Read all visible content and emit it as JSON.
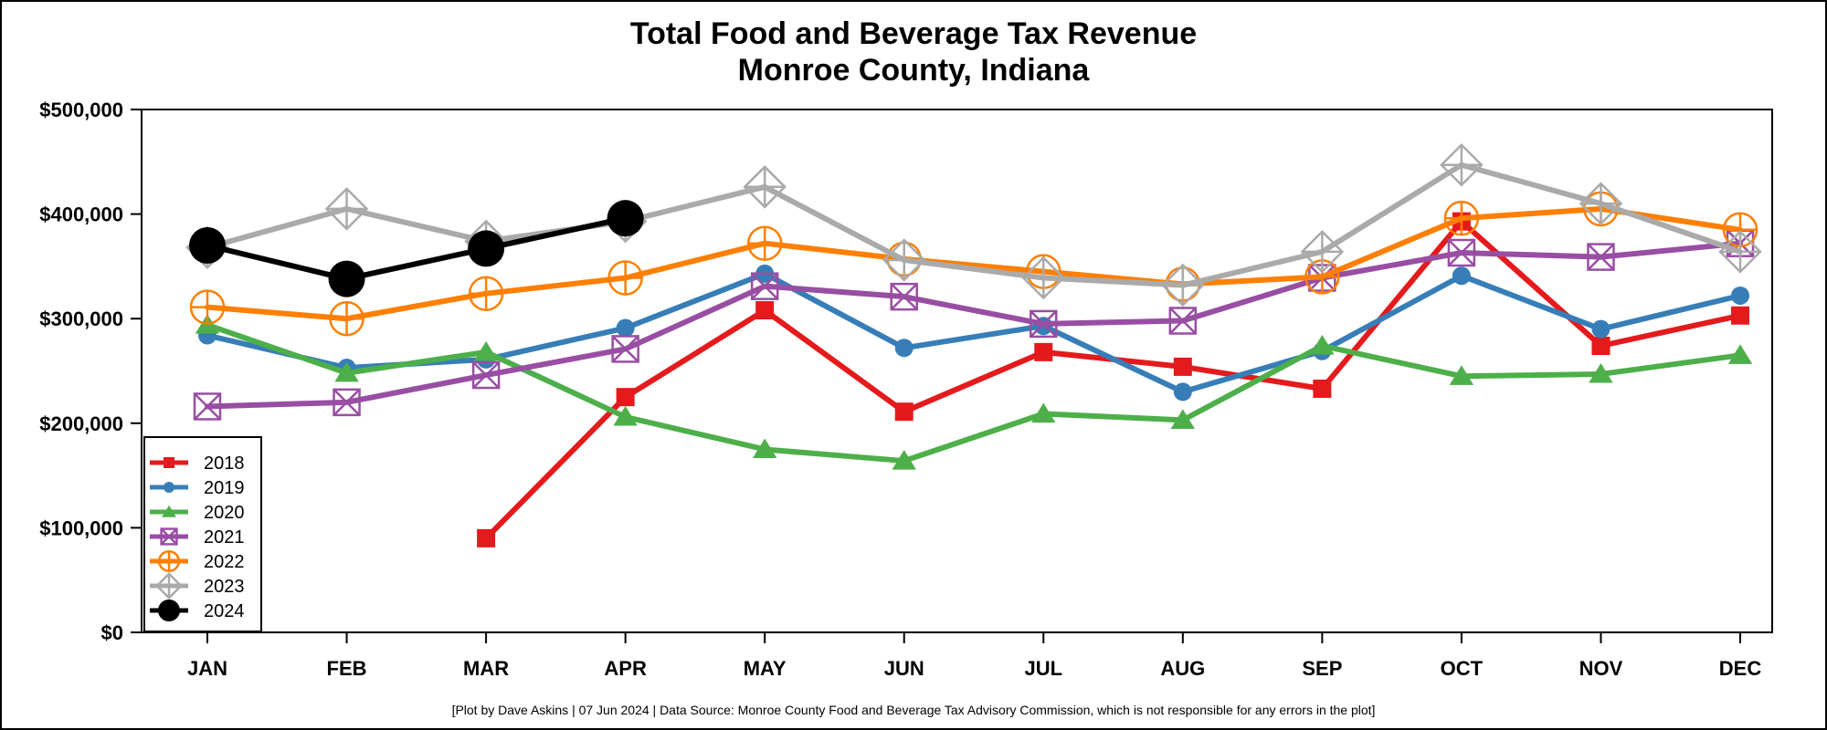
{
  "chart_data": {
    "type": "line",
    "title": "Total Food and Beverage Tax Revenue",
    "subtitle": "Monroe County, Indiana",
    "xlabel": "",
    "ylabel": "",
    "categories": [
      "JAN",
      "FEB",
      "MAR",
      "APR",
      "MAY",
      "JUN",
      "JUL",
      "AUG",
      "SEP",
      "OCT",
      "NOV",
      "DEC"
    ],
    "ylim": [
      0,
      500000
    ],
    "yticks": [
      {
        "value": 0,
        "label": "$0"
      },
      {
        "value": 100000,
        "label": "$100,000"
      },
      {
        "value": 200000,
        "label": "$200,000"
      },
      {
        "value": 300000,
        "label": "$300,000"
      },
      {
        "value": 400000,
        "label": "$400,000"
      },
      {
        "value": 500000,
        "label": "$500,000"
      }
    ],
    "legend_position": "bottom-left",
    "series": [
      {
        "name": "2018",
        "color": "#e41a1c",
        "marker": "square",
        "values": [
          null,
          null,
          90000,
          225000,
          308000,
          211000,
          268000,
          254000,
          233000,
          393000,
          274000,
          303000
        ]
      },
      {
        "name": "2019",
        "color": "#377eb8",
        "marker": "circle",
        "values": [
          284000,
          253000,
          261000,
          291000,
          343000,
          272000,
          293000,
          230000,
          269000,
          341000,
          290000,
          322000
        ]
      },
      {
        "name": "2020",
        "color": "#4daf4a",
        "marker": "triangle",
        "values": [
          294000,
          248000,
          268000,
          206000,
          175000,
          164000,
          209000,
          203000,
          274000,
          245000,
          247000,
          265000
        ]
      },
      {
        "name": "2021",
        "color": "#984ea3",
        "marker": "boxx",
        "values": [
          216000,
          220000,
          246000,
          271000,
          331000,
          321000,
          295000,
          298000,
          339000,
          363000,
          359000,
          372000
        ]
      },
      {
        "name": "2022",
        "color": "#ff7f00",
        "marker": "circleplus",
        "values": [
          311000,
          300000,
          324000,
          339000,
          372000,
          357000,
          345000,
          333000,
          340000,
          396000,
          405000,
          385000
        ]
      },
      {
        "name": "2023",
        "color": "#aaaaaa",
        "marker": "diamondplus",
        "values": [
          368000,
          405000,
          374000,
          393000,
          426000,
          356000,
          339000,
          332000,
          364000,
          447000,
          410000,
          364000
        ]
      },
      {
        "name": "2024",
        "color": "#000000",
        "marker": "bigcircle",
        "values": [
          370000,
          338000,
          367000,
          396000,
          null,
          null,
          null,
          null,
          null,
          null,
          null,
          null
        ]
      }
    ],
    "caption": "[Plot by Dave Askins | 07 Jun 2024 | Data Source: Monroe County Food and Beverage Tax Advisory Commission, which is not responsible for any errors in the plot]"
  }
}
